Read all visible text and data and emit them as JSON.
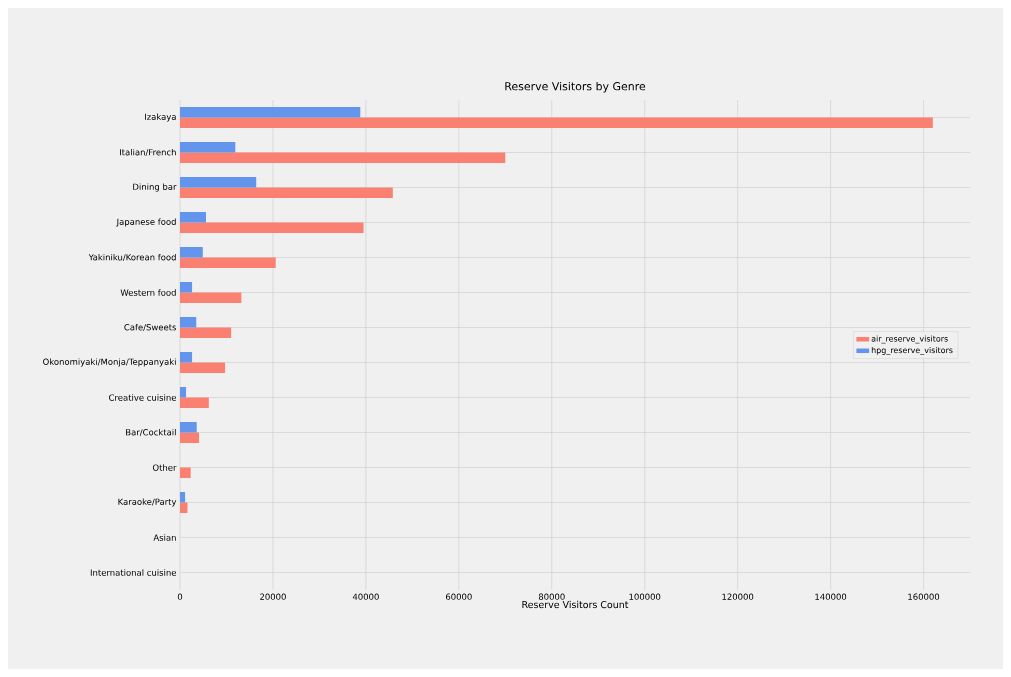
{
  "chart_data": {
    "type": "bar",
    "orientation": "horizontal",
    "title": "Reserve Visitors by Genre",
    "xlabel": "Reserve Visitors Count",
    "categories": [
      "Izakaya",
      "Italian/French",
      "Dining bar",
      "Japanese food",
      "Yakiniku/Korean food",
      "Western food",
      "Cafe/Sweets",
      "Okonomiyaki/Monja/Teppanyaki",
      "Creative cuisine",
      "Bar/Cocktail",
      "Other",
      "Karaoke/Party",
      "Asian",
      "International cuisine"
    ],
    "series": [
      {
        "name": "air_reserve_visitors",
        "color": "#fa8072",
        "values": [
          162000,
          70000,
          45800,
          39500,
          20600,
          13200,
          11000,
          9700,
          6200,
          4100,
          2300,
          1600,
          0,
          0
        ]
      },
      {
        "name": "hpg_reserve_visitors",
        "color": "#6495ed",
        "values": [
          38800,
          11900,
          16400,
          5600,
          4900,
          2600,
          3500,
          2600,
          1300,
          3600,
          0,
          1100,
          0,
          0
        ]
      }
    ],
    "xlim": [
      0,
      170000
    ],
    "xticks": [
      0,
      20000,
      40000,
      60000,
      80000,
      100000,
      120000,
      140000,
      160000
    ],
    "grid": true,
    "legend": "right"
  }
}
